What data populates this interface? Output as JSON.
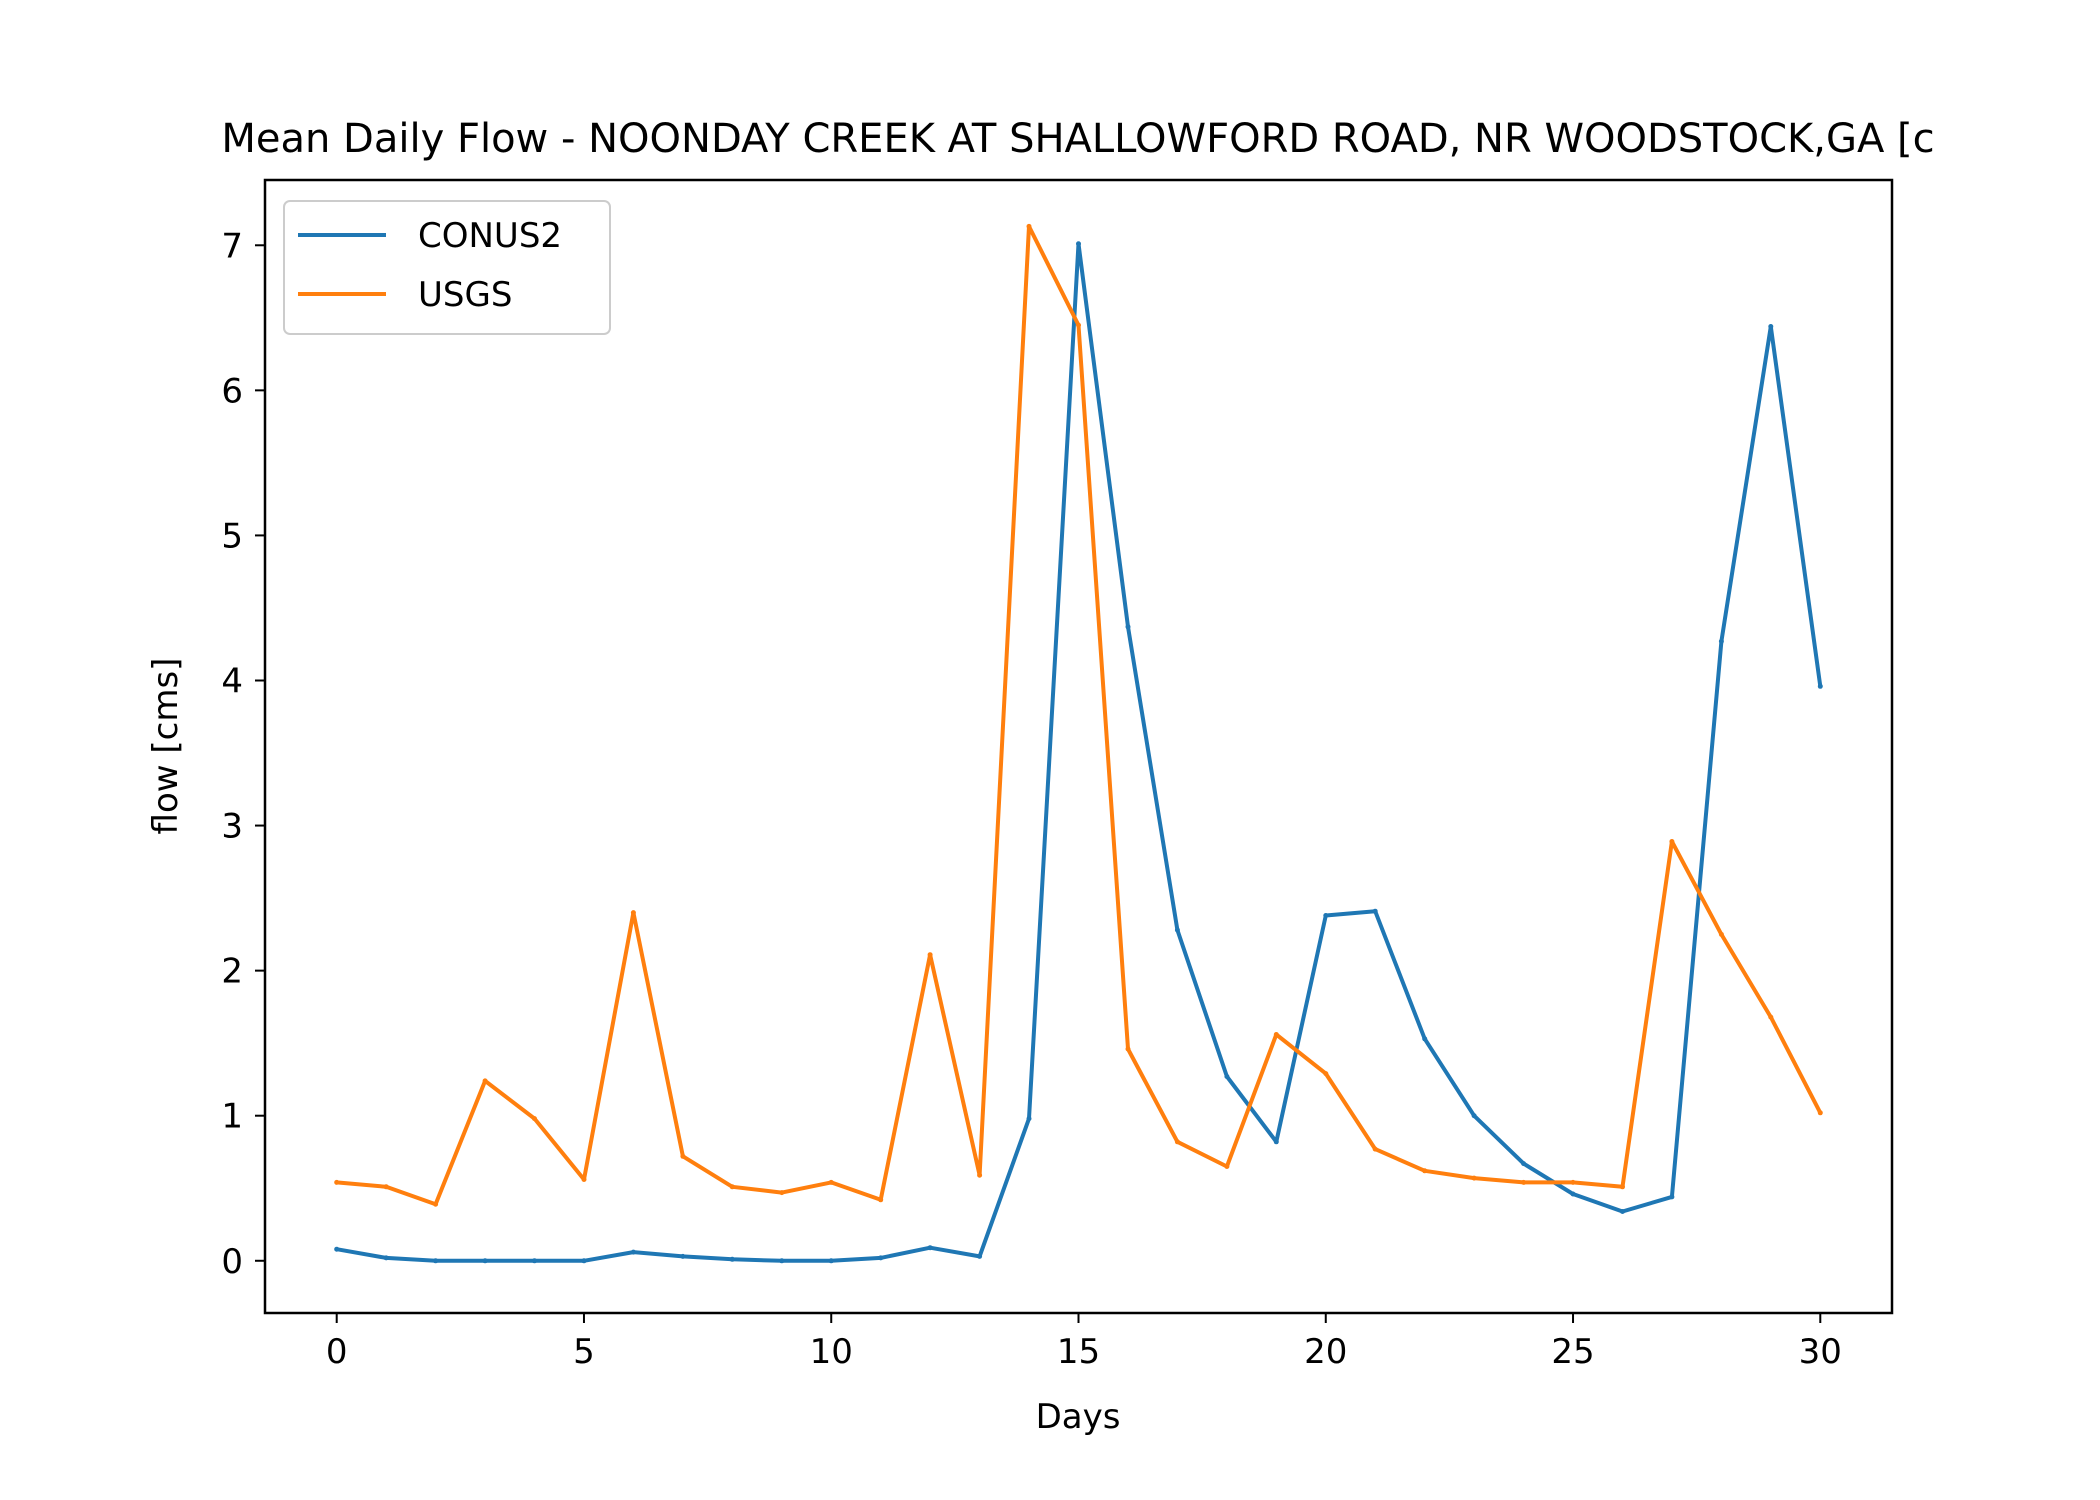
{
  "chart_data": {
    "type": "line",
    "title": "Mean Daily Flow - NOONDAY CREEK AT SHALLOWFORD ROAD, NR WOODSTOCK,GA [c",
    "xlabel": "Days",
    "ylabel": "flow [cms]",
    "xlim": [
      -1.45,
      31.45
    ],
    "ylim": [
      -0.36,
      7.45
    ],
    "xticks": [
      0,
      5,
      10,
      15,
      20,
      25,
      30
    ],
    "yticks": [
      0,
      1,
      2,
      3,
      4,
      5,
      6,
      7
    ],
    "grid": false,
    "legend_position": "top-left",
    "x": [
      0,
      1,
      2,
      3,
      4,
      5,
      6,
      7,
      8,
      9,
      10,
      11,
      12,
      13,
      14,
      15,
      16,
      17,
      18,
      19,
      20,
      21,
      22,
      23,
      24,
      25,
      26,
      27,
      28,
      29,
      30
    ],
    "series": [
      {
        "name": "CONUS2",
        "color": "#1f77b4",
        "values": [
          0.08,
          0.02,
          0.0,
          0.0,
          0.0,
          0.0,
          0.06,
          0.03,
          0.01,
          0.0,
          0.0,
          0.02,
          0.09,
          0.03,
          0.98,
          7.01,
          4.37,
          2.28,
          1.27,
          0.82,
          2.38,
          2.41,
          1.53,
          1.0,
          0.67,
          0.46,
          0.34,
          0.44,
          4.27,
          6.44,
          3.96
        ]
      },
      {
        "name": "USGS",
        "color": "#ff7f0e",
        "values": [
          0.54,
          0.51,
          0.39,
          1.24,
          0.98,
          0.56,
          2.4,
          0.72,
          0.51,
          0.47,
          0.54,
          0.42,
          2.11,
          0.59,
          7.13,
          6.45,
          1.46,
          0.82,
          0.65,
          1.56,
          1.29,
          0.77,
          0.62,
          0.57,
          0.54,
          0.54,
          0.51,
          2.89,
          2.25,
          1.68,
          1.02
        ]
      }
    ]
  }
}
